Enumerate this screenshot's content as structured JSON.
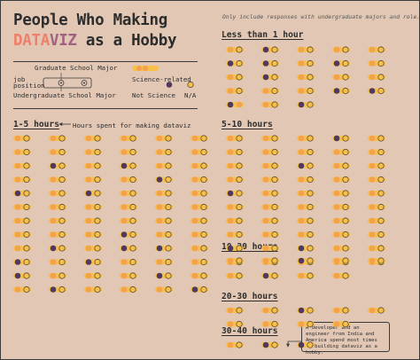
{
  "title": {
    "line1": "People Who Making",
    "line2_accent_a": "DATA",
    "line2_accent_b": "VIZ",
    "line2_rest": " as a Hobby"
  },
  "note": "Only include responses with undergraduate majors and role.",
  "legend": {
    "graduate": "Graduate School Major",
    "job_a": "job",
    "job_b": "position",
    "undergraduate": "Undergraduate School Major",
    "science": "Science-related",
    "not_science": "Not Science",
    "na": "N/A"
  },
  "annotations": {
    "hours_arrow": "Hours spent for making dataviz",
    "callout": "A developer and an engineer from India and America spend most times on building dataviz as a hobby."
  },
  "colors": {
    "background": "#e1c7b4",
    "bar": "#f6c04a",
    "science": "#f3a14d",
    "not_science": "#4f3a5e",
    "na": "#f6c04a",
    "ring": "#5a4a3a",
    "title_accent_a": "#ee7f6b",
    "title_accent_b": "#a0627f"
  },
  "chart_data": {
    "type": "unit-glyph",
    "groups": [
      {
        "label": "Less than 1 hour",
        "people": [
          [
            "science",
            "na"
          ],
          [
            "not_science",
            "na"
          ],
          [
            "science",
            "na"
          ],
          [
            "science",
            "na"
          ],
          [
            "science",
            "na"
          ],
          [
            "not_science",
            "na"
          ],
          [
            "not_science",
            "na"
          ],
          [
            "science",
            "na"
          ],
          [
            "not_science",
            "na"
          ],
          [
            "science",
            "na"
          ],
          [
            "science",
            "na"
          ],
          [
            "not_science",
            "na"
          ],
          [
            "science",
            "na"
          ],
          [
            "science",
            "na"
          ],
          [
            "science",
            "na"
          ],
          [
            "science",
            "na"
          ],
          [
            "science",
            "na"
          ],
          [
            "science",
            "na"
          ],
          [
            "not_science",
            "na"
          ],
          [
            "not_science",
            "na"
          ],
          [
            "not_science",
            "science"
          ],
          [
            "science",
            "na"
          ],
          [
            "not_science",
            "na"
          ]
        ]
      },
      {
        "label": "1-5 hours",
        "people": [
          [
            "science",
            "na"
          ],
          [
            "science",
            "na"
          ],
          [
            "science",
            "na"
          ],
          [
            "science",
            "na"
          ],
          [
            "science",
            "na"
          ],
          [
            "science",
            "na"
          ],
          [
            "science",
            "na"
          ],
          [
            "science",
            "na"
          ],
          [
            "science",
            "na"
          ],
          [
            "science",
            "na"
          ],
          [
            "science",
            "na"
          ],
          [
            "science",
            "na"
          ],
          [
            "science",
            "na"
          ],
          [
            "not_science",
            "na"
          ],
          [
            "science",
            "na"
          ],
          [
            "not_science",
            "na"
          ],
          [
            "science",
            "na"
          ],
          [
            "science",
            "na"
          ],
          [
            "science",
            "na"
          ],
          [
            "science",
            "na"
          ],
          [
            "science",
            "na"
          ],
          [
            "science",
            "na"
          ],
          [
            "not_science",
            "na"
          ],
          [
            "science",
            "na"
          ],
          [
            "not_science",
            "na"
          ],
          [
            "science",
            "na"
          ],
          [
            "not_science",
            "na"
          ],
          [
            "science",
            "na"
          ],
          [
            "science",
            "na"
          ],
          [
            "science",
            "na"
          ],
          [
            "science",
            "na"
          ],
          [
            "science",
            "na"
          ],
          [
            "science",
            "na"
          ],
          [
            "science",
            "na"
          ],
          [
            "science",
            "na"
          ],
          [
            "science",
            "na"
          ],
          [
            "science",
            "na"
          ],
          [
            "science",
            "na"
          ],
          [
            "science",
            "na"
          ],
          [
            "science",
            "na"
          ],
          [
            "science",
            "na"
          ],
          [
            "science",
            "na"
          ],
          [
            "science",
            "na"
          ],
          [
            "science",
            "na"
          ],
          [
            "science",
            "na"
          ],
          [
            "not_science",
            "na"
          ],
          [
            "science",
            "na"
          ],
          [
            "science",
            "na"
          ],
          [
            "science",
            "na"
          ],
          [
            "not_science",
            "na"
          ],
          [
            "science",
            "na"
          ],
          [
            "not_science",
            "na"
          ],
          [
            "not_science",
            "na"
          ],
          [
            "science",
            "na"
          ],
          [
            "not_science",
            "na"
          ],
          [
            "science",
            "na"
          ],
          [
            "not_science",
            "na"
          ],
          [
            "science",
            "na"
          ],
          [
            "science",
            "na"
          ],
          [
            "science",
            "na"
          ],
          [
            "not_science",
            "na"
          ],
          [
            "science",
            "na"
          ],
          [
            "science",
            "na"
          ],
          [
            "science",
            "na"
          ],
          [
            "not_science",
            "na"
          ],
          [
            "science",
            "na"
          ],
          [
            "science",
            "na"
          ],
          [
            "not_science",
            "na"
          ],
          [
            "science",
            "na"
          ],
          [
            "science",
            "na"
          ],
          [
            "science",
            "na"
          ],
          [
            "not_science",
            "na"
          ]
        ]
      },
      {
        "label": "5-10 hours",
        "people": [
          [
            "science",
            "na"
          ],
          [
            "science",
            "na"
          ],
          [
            "science",
            "na"
          ],
          [
            "not_science",
            "na"
          ],
          [
            "science",
            "na"
          ],
          [
            "science",
            "na"
          ],
          [
            "science",
            "na"
          ],
          [
            "science",
            "na"
          ],
          [
            "science",
            "na"
          ],
          [
            "science",
            "na"
          ],
          [
            "science",
            "na"
          ],
          [
            "science",
            "na"
          ],
          [
            "not_science",
            "na"
          ],
          [
            "science",
            "na"
          ],
          [
            "science",
            "na"
          ],
          [
            "science",
            "na"
          ],
          [
            "science",
            "na"
          ],
          [
            "science",
            "na"
          ],
          [
            "science",
            "na"
          ],
          [
            "science",
            "na"
          ],
          [
            "not_science",
            "na"
          ],
          [
            "science",
            "na"
          ],
          [
            "science",
            "na"
          ],
          [
            "science",
            "na"
          ],
          [
            "science",
            "na"
          ],
          [
            "science",
            "na"
          ],
          [
            "science",
            "na"
          ],
          [
            "science",
            "na"
          ],
          [
            "science",
            "na"
          ],
          [
            "science",
            "na"
          ],
          [
            "science",
            "na"
          ],
          [
            "science",
            "na"
          ],
          [
            "science",
            "na"
          ],
          [
            "science",
            "na"
          ],
          [
            "science",
            "na"
          ],
          [
            "science",
            "na"
          ],
          [
            "science",
            "na"
          ],
          [
            "science",
            "na"
          ],
          [
            "science",
            "na"
          ],
          [
            "science",
            "na"
          ],
          [
            "not_science",
            "na"
          ],
          [
            "science",
            "na"
          ],
          [
            "not_science",
            "na"
          ],
          [
            "science",
            "na"
          ],
          [
            "science",
            "na"
          ],
          [
            "science",
            "na"
          ],
          [
            "science",
            "na"
          ],
          [
            "science",
            "na"
          ],
          [
            "science",
            "na"
          ],
          [
            "science",
            "na"
          ],
          [
            "science",
            "na"
          ],
          [
            "not_science",
            "na"
          ],
          [
            "science",
            "na"
          ],
          [
            "science",
            "na"
          ]
        ]
      },
      {
        "label": "10-20 hours",
        "people": [
          [
            "science",
            "na"
          ],
          [
            "science",
            "na"
          ],
          [
            "not_science",
            "na"
          ],
          [
            "science",
            "na"
          ],
          [
            "science",
            "na"
          ]
        ]
      },
      {
        "label": "20-30 hours",
        "people": [
          [
            "science",
            "na"
          ],
          [
            "science",
            "na"
          ],
          [
            "not_science",
            "na"
          ],
          [
            "science",
            "na"
          ],
          [
            "science",
            "na"
          ],
          [
            "science",
            "na"
          ],
          [
            "science",
            "na"
          ],
          [
            "science",
            "na"
          ],
          [
            "science",
            "na"
          ]
        ]
      },
      {
        "label": "30-40 hours",
        "people": [
          [
            "science",
            "na"
          ],
          [
            "not_science",
            "na"
          ],
          [
            "not_science",
            "na"
          ]
        ]
      }
    ]
  }
}
